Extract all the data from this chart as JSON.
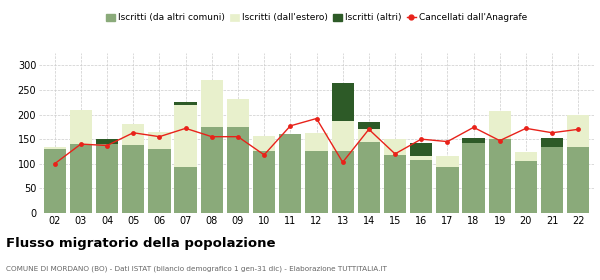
{
  "years": [
    "02",
    "03",
    "04",
    "05",
    "06",
    "07",
    "08",
    "09",
    "10",
    "11",
    "12",
    "13",
    "14",
    "15",
    "16",
    "17",
    "18",
    "19",
    "20",
    "21",
    "22"
  ],
  "iscritti_altri_comuni": [
    130,
    140,
    140,
    138,
    130,
    93,
    175,
    175,
    125,
    160,
    125,
    125,
    145,
    118,
    108,
    93,
    143,
    150,
    105,
    133,
    135
  ],
  "iscritti_estero": [
    5,
    70,
    0,
    42,
    35,
    127,
    95,
    57,
    32,
    0,
    37,
    62,
    25,
    32,
    8,
    22,
    0,
    57,
    18,
    0,
    65
  ],
  "iscritti_altri": [
    0,
    0,
    10,
    0,
    0,
    5,
    0,
    0,
    0,
    0,
    0,
    78,
    15,
    0,
    27,
    0,
    10,
    0,
    0,
    20,
    0
  ],
  "cancellati": [
    100,
    140,
    137,
    163,
    155,
    172,
    155,
    155,
    118,
    177,
    192,
    103,
    170,
    120,
    150,
    145,
    174,
    147,
    172,
    163,
    170
  ],
  "bar_color_comuni": "#8aaa7a",
  "bar_color_estero": "#e8f0cc",
  "bar_color_altri": "#2d5a27",
  "line_color": "#e8221a",
  "bg_color": "#ffffff",
  "grid_color": "#cccccc",
  "title": "Flusso migratorio della popolazione",
  "subtitle": "COMUNE DI MORDANO (BO) - Dati ISTAT (bilancio demografico 1 gen-31 dic) - Elaborazione TUTTITALIA.IT",
  "legend_labels": [
    "Iscritti (da altri comuni)",
    "Iscritti (dall'estero)",
    "Iscritti (altri)",
    "Cancellati dall'Anagrafe"
  ],
  "ylim": [
    0,
    325
  ],
  "yticks": [
    0,
    50,
    100,
    150,
    200,
    250,
    300
  ]
}
